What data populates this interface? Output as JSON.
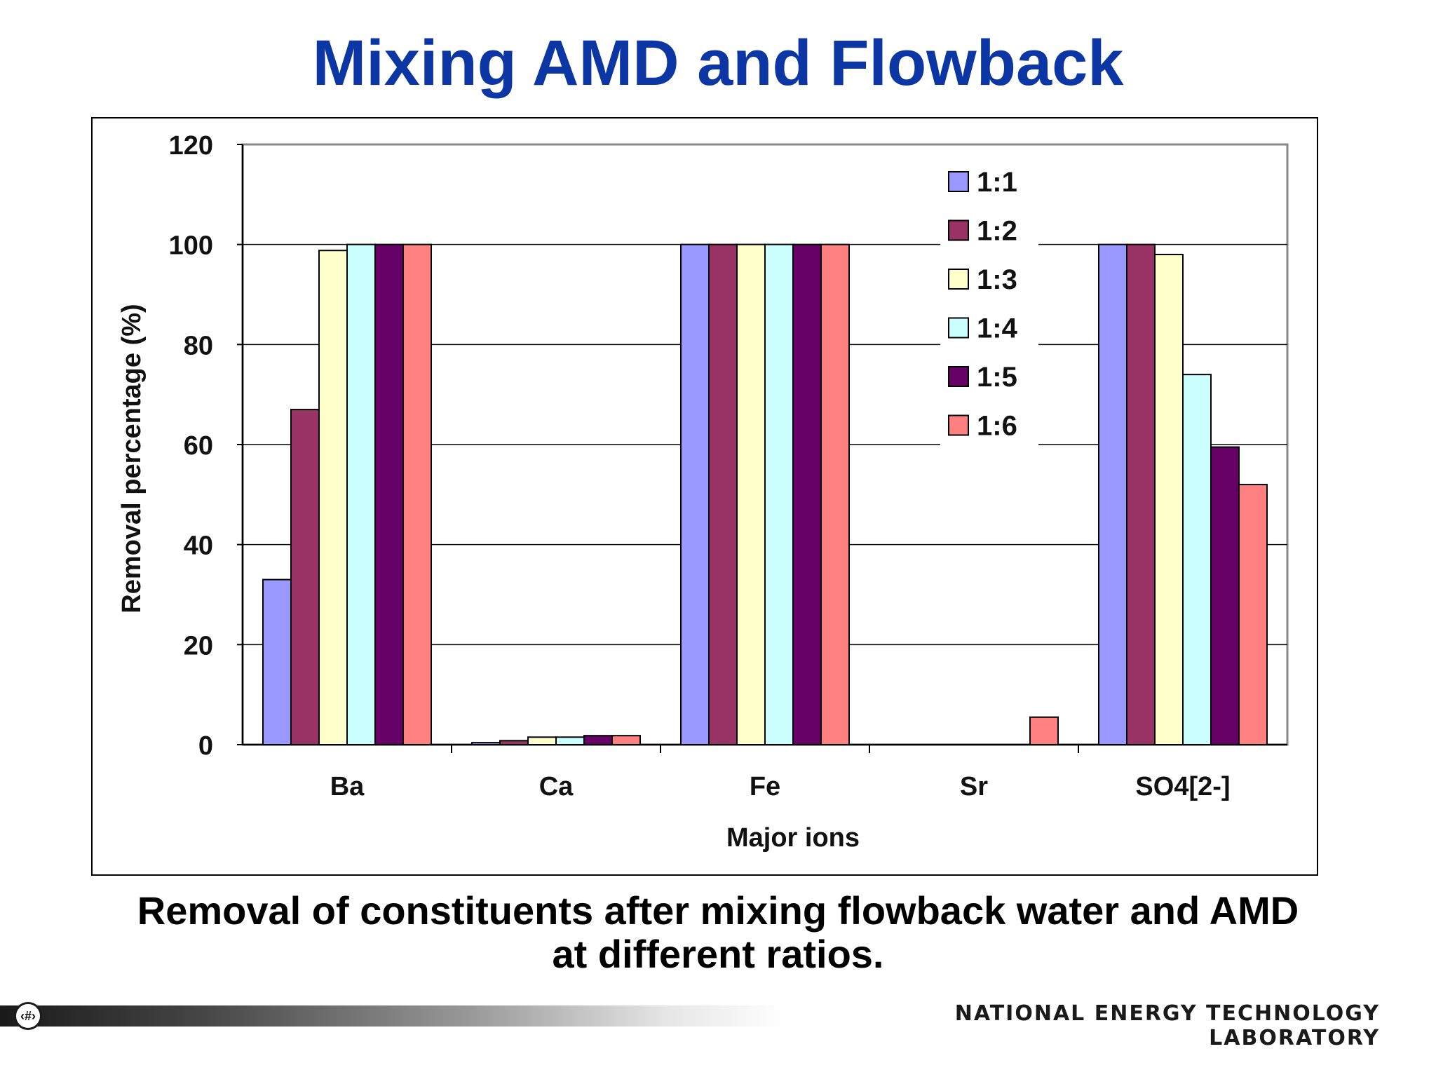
{
  "slide": {
    "title": "Mixing AMD and Flowback",
    "caption_line1": "Removal of constituents after mixing flowback water and AMD",
    "caption_line2": "at different ratios.",
    "page_number": "‹#›",
    "organization": "NATIONAL ENERGY TECHNOLOGY LABORATORY"
  },
  "chart_data": {
    "type": "bar",
    "title": "",
    "xlabel": "Major ions",
    "ylabel": "Removal percentage (%)",
    "ylim": [
      0,
      120
    ],
    "yticks": [
      0,
      20,
      40,
      60,
      80,
      100,
      120
    ],
    "grid": true,
    "legend_position": "top-right",
    "categories": [
      "Ba",
      "Ca",
      "Fe",
      "Sr",
      "SO4[2-]"
    ],
    "series": [
      {
        "name": "1:1",
        "color": "#9999ff",
        "values": [
          33,
          0.4,
          100,
          0,
          100
        ]
      },
      {
        "name": "1:2",
        "color": "#993366",
        "values": [
          67,
          0.8,
          100,
          0,
          100
        ]
      },
      {
        "name": "1:3",
        "color": "#ffffcc",
        "values": [
          98.8,
          1.5,
          100,
          0,
          98
        ]
      },
      {
        "name": "1:4",
        "color": "#ccffff",
        "values": [
          100,
          1.5,
          100,
          0,
          74
        ]
      },
      {
        "name": "1:5",
        "color": "#660066",
        "values": [
          100,
          1.8,
          100,
          0,
          59.5
        ]
      },
      {
        "name": "1:6",
        "color": "#ff8080",
        "values": [
          100,
          1.8,
          100,
          5.5,
          52
        ]
      }
    ]
  }
}
